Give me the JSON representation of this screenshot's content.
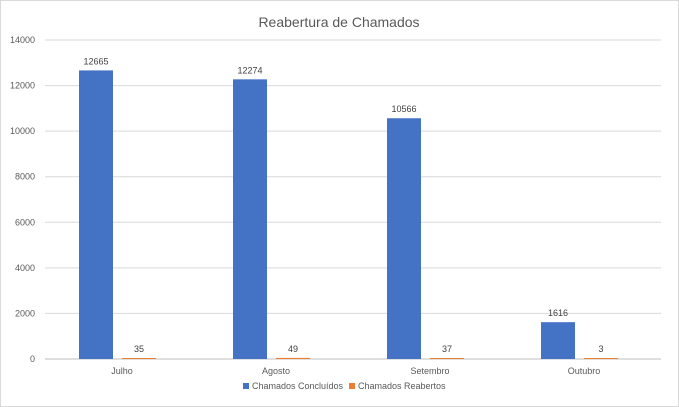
{
  "chart_data": {
    "type": "bar",
    "title": "Reabertura de Chamados",
    "categories": [
      "Julho",
      "Agosto",
      "Setembro",
      "Outubro"
    ],
    "series": [
      {
        "name": "Chamados Concluídos",
        "color": "#4472c4",
        "values": [
          12665,
          12274,
          10566,
          1616
        ]
      },
      {
        "name": "Chamados Reabertos",
        "color": "#ed7d31",
        "values": [
          35,
          49,
          37,
          3
        ]
      }
    ],
    "ylim": [
      0,
      14000
    ],
    "yticks": [
      0,
      2000,
      4000,
      6000,
      8000,
      10000,
      12000,
      14000
    ],
    "grid": true,
    "legend": "bottom",
    "data_labels": true
  }
}
